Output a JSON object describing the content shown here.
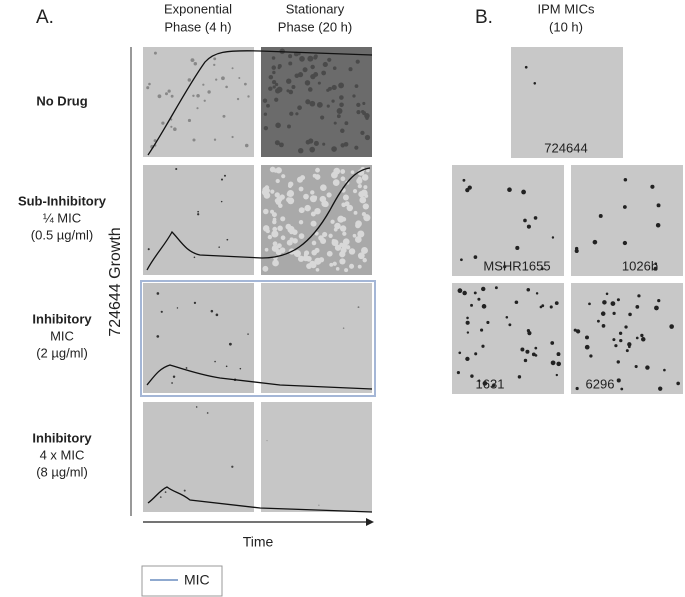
{
  "panel_a": {
    "label": "A.",
    "columns": [
      [
        "Exponential",
        "Phase (4 h)"
      ],
      [
        "Stationary",
        "Phase (20 h)"
      ]
    ],
    "rows": [
      {
        "title": "No Drug",
        "lines": []
      },
      {
        "title": "Sub-Inhibitory",
        "lines": [
          "¼ MIC",
          "(0.5 µg/ml)"
        ]
      },
      {
        "title": "Inhibitory",
        "lines": [
          "MIC",
          "(2 µg/ml)"
        ]
      },
      {
        "title": "Inhibitory",
        "lines": [
          "4 x MIC",
          "(8 µg/ml)"
        ]
      }
    ],
    "y_axis_label": "724644 Growth",
    "x_axis_label": "Time",
    "legend": "MIC"
  },
  "panel_b": {
    "label": "B.",
    "title": [
      "IPM MICs",
      "(10 h)"
    ],
    "strains": [
      "724644",
      "MSHR1655",
      "1026b",
      "1631",
      "6296"
    ]
  }
}
